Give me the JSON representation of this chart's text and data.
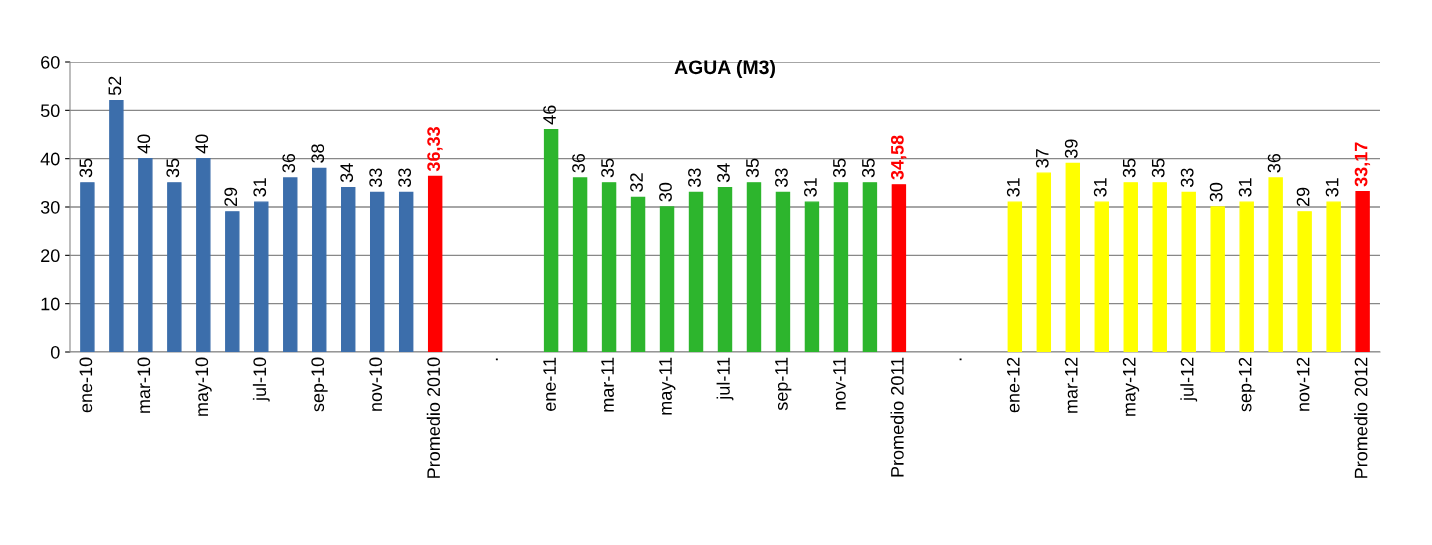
{
  "chart_data": {
    "type": "bar",
    "title": "AGUA (M3)",
    "categories": [
      "ene-10",
      null,
      "mar-10",
      null,
      "may-10",
      null,
      "jul-10",
      null,
      "sep-10",
      null,
      "nov-10",
      null,
      "Promedio 2010",
      null,
      ".",
      null,
      "ene-11",
      null,
      "mar-11",
      null,
      "may-11",
      null,
      "jul-11",
      null,
      "sep-11",
      null,
      "nov-11",
      null,
      "Promedio 2011",
      null,
      ".",
      null,
      "ene-12",
      null,
      "mar-12",
      null,
      "may-12",
      null,
      "jul-12",
      null,
      "sep-12",
      null,
      "nov-12",
      null,
      "Promedio 2012"
    ],
    "series": [
      {
        "color": "#3c6eab",
        "values": [
          35,
          52,
          40,
          35,
          40,
          29,
          31,
          36,
          38,
          34,
          33,
          33,
          null,
          null,
          null,
          null,
          null,
          null,
          null,
          null,
          null,
          null,
          null,
          null,
          null,
          null,
          null,
          null,
          null,
          null,
          null,
          null,
          null,
          null,
          null,
          null,
          null,
          null,
          null,
          null,
          null,
          null,
          null,
          null,
          null
        ]
      },
      {
        "color": "#2db52d",
        "values": [
          null,
          null,
          null,
          null,
          null,
          null,
          null,
          null,
          null,
          null,
          null,
          null,
          null,
          null,
          null,
          null,
          46,
          36,
          35,
          32,
          30,
          33,
          34,
          35,
          33,
          31,
          35,
          35,
          null,
          null,
          null,
          null,
          null,
          null,
          null,
          null,
          null,
          null,
          null,
          null,
          null,
          null,
          null,
          null,
          null
        ]
      },
      {
        "color": "#ffff00",
        "values": [
          null,
          null,
          null,
          null,
          null,
          null,
          null,
          null,
          null,
          null,
          null,
          null,
          null,
          null,
          null,
          null,
          null,
          null,
          null,
          null,
          null,
          null,
          null,
          null,
          null,
          null,
          null,
          null,
          null,
          null,
          null,
          null,
          31,
          37,
          39,
          31,
          35,
          35,
          33,
          30,
          31,
          36,
          29,
          31,
          null
        ]
      },
      {
        "color": "#ff0000",
        "values": [
          null,
          null,
          null,
          null,
          null,
          null,
          null,
          null,
          null,
          null,
          null,
          null,
          36.33,
          null,
          null,
          null,
          null,
          null,
          null,
          null,
          null,
          null,
          null,
          null,
          null,
          null,
          null,
          null,
          34.58,
          null,
          null,
          null,
          null,
          null,
          null,
          null,
          null,
          null,
          null,
          null,
          null,
          null,
          null,
          null,
          33.17
        ],
        "value_labels": [
          null,
          null,
          null,
          null,
          null,
          null,
          null,
          null,
          null,
          null,
          null,
          null,
          "36,33",
          null,
          null,
          null,
          null,
          null,
          null,
          null,
          null,
          null,
          null,
          null,
          null,
          null,
          null,
          null,
          "34,58",
          null,
          null,
          null,
          null,
          null,
          null,
          null,
          null,
          null,
          null,
          null,
          null,
          null,
          null,
          null,
          "33,17"
        ]
      }
    ],
    "ylim": [
      0,
      60
    ],
    "yticks": [
      0,
      10,
      20,
      30,
      40,
      50,
      60
    ],
    "grid": "y",
    "data_labels": true
  }
}
